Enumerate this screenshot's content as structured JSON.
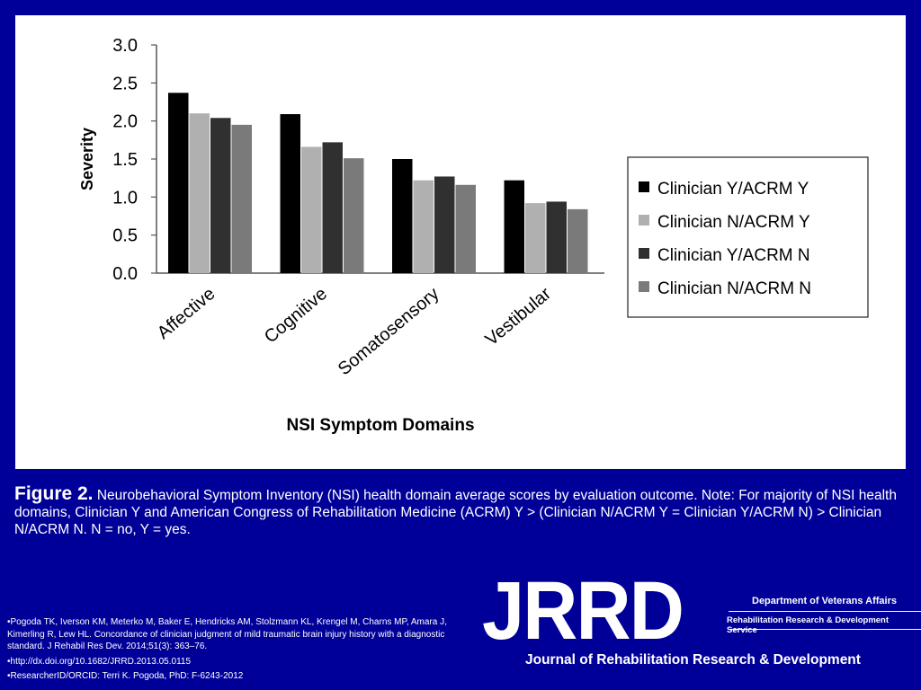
{
  "chart_data": {
    "type": "bar",
    "categories": [
      "Affective",
      "Cognitive",
      "Somatosensory",
      "Vestibular"
    ],
    "series": [
      {
        "name": "Clinician Y/ACRM Y",
        "values": [
          2.37,
          2.09,
          1.5,
          1.22
        ],
        "color": "#000000"
      },
      {
        "name": "Clinician N/ACRM Y",
        "values": [
          2.1,
          1.66,
          1.22,
          0.92
        ],
        "color": "#b0b0b0"
      },
      {
        "name": "Clinician Y/ACRM N",
        "values": [
          2.04,
          1.72,
          1.27,
          0.94
        ],
        "color": "#303030"
      },
      {
        "name": "Clinician N/ACRM N",
        "values": [
          1.95,
          1.51,
          1.16,
          0.84
        ],
        "color": "#7a7a7a"
      }
    ],
    "ylabel": "Severity",
    "xlabel": "NSI Symptom Domains",
    "ylim": [
      0,
      3.0
    ],
    "yticks": [
      "0.0",
      "0.5",
      "1.0",
      "1.5",
      "2.0",
      "2.5",
      "3.0"
    ],
    "legend": "right",
    "grid": false
  },
  "caption": {
    "figure_label": "Figure 2.",
    "text": "Neurobehavioral Symptom Inventory (NSI) health domain average scores by evaluation outcome. Note: For majority of NSI health domains, Clinician Y and American Congress of Rehabilitation Medicine (ACRM) Y > (Clinician N/ACRM Y = Clinician Y/ACRM N) > Clinician N/ACRM N. N = no, Y = yes."
  },
  "references": [
    "•Pogoda TK, Iverson KM, Meterko M, Baker E, Hendricks AM, Stolzmann KL, Krengel M, Charns MP, Amara J, Kimerling R, Lew HL. Concordance of clinician judgment of mild traumatic brain injury history with a diagnostic standard. J Rehabil Res Dev. 2014;51(3): 363–76.",
    "•http://dx.doi.org/10.1682/JRRD.2013.05.0115",
    "•ResearcherID/ORCID: Terri K. Pogoda, PhD: F-6243-2012"
  ],
  "logo": {
    "name": "JRRD",
    "department": "Department of Veterans Affairs",
    "service": "Rehabilitation Research & Development Service",
    "journal": "Journal of Rehabilitation Research & Development"
  },
  "colors": {
    "background": "#000099",
    "panel": "#ffffff"
  }
}
